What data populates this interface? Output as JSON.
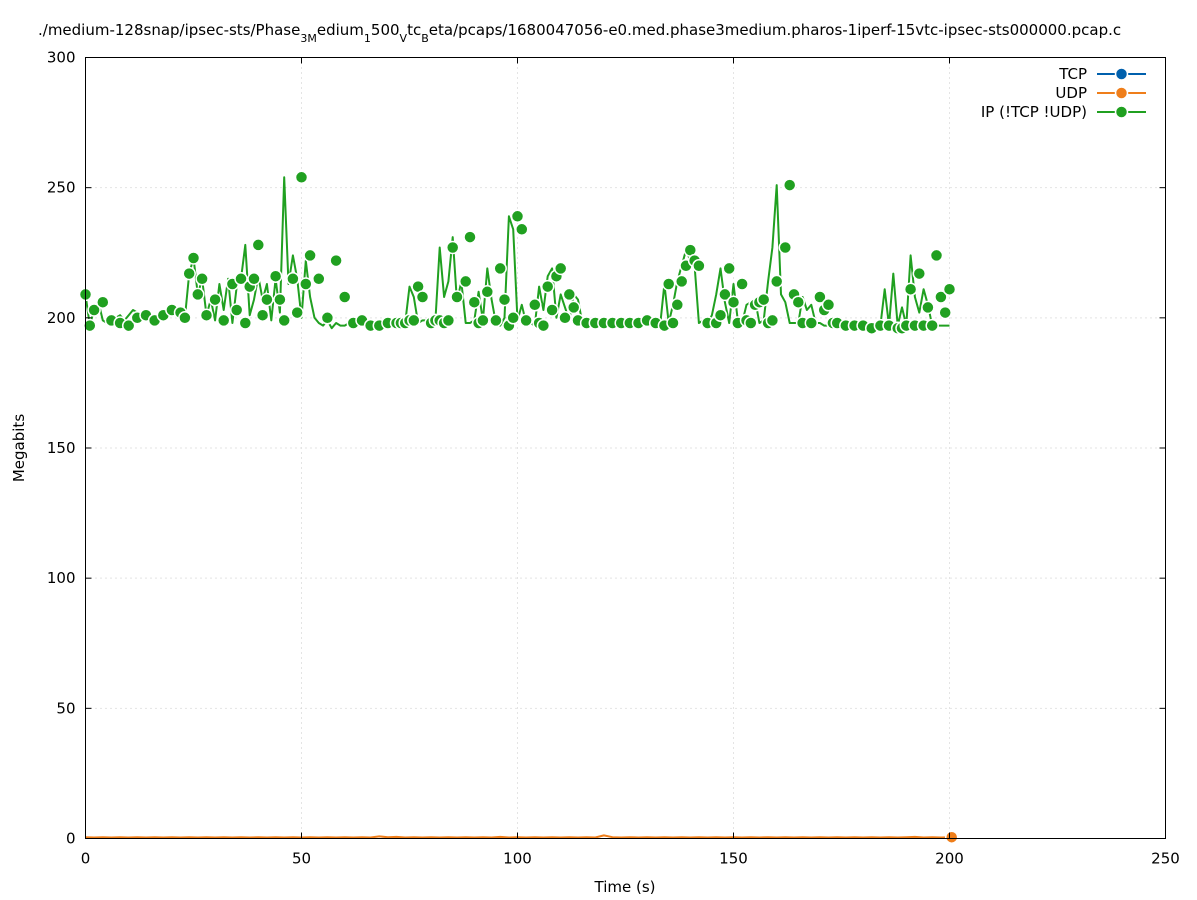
{
  "chart_data": {
    "type": "line",
    "title": "./medium-128snap/ipsec-sts/Phase3Medium1500VtcBeta/pcaps/1680047056-e0.med.phase3medium.pharos-1iperf-15vtc-ipsec-sts000000.pcap.c",
    "title_parts": {
      "p1": "./medium-128snap/ipsec-sts/Phase",
      "s1": "3M",
      "p2": "edium",
      "s2": "1",
      "p3": "500",
      "s3": "V",
      "p4": "tc",
      "s4": "B",
      "p5": "eta/pcaps/1680047056-e0.med.phase3medium.pharos-1iperf-15vtc-ipsec-sts000000.pcap.c"
    },
    "xlabel": "Time (s)",
    "ylabel": "Megabits",
    "xlim": [
      0,
      250
    ],
    "ylim": [
      0,
      300
    ],
    "xticks": [
      "0",
      "50",
      "100",
      "150",
      "200",
      "250"
    ],
    "yticks": [
      "0",
      "50",
      "100",
      "150",
      "200",
      "250",
      "300"
    ],
    "grid": true,
    "legend_position": "top-right",
    "series": [
      {
        "name": "TCP",
        "color": "#0060ad",
        "x": [],
        "y": []
      },
      {
        "name": "UDP",
        "color": "#ef7e1a",
        "x": [
          0,
          2,
          4,
          6,
          8,
          10,
          12,
          14,
          16,
          18,
          20,
          22,
          24,
          26,
          28,
          30,
          32,
          34,
          36,
          38,
          40,
          42,
          44,
          46,
          48,
          50,
          52,
          54,
          56,
          58,
          60,
          62,
          64,
          66,
          68,
          70,
          72,
          74,
          76,
          78,
          80,
          82,
          84,
          86,
          88,
          90,
          92,
          94,
          96,
          98,
          100,
          102,
          104,
          106,
          108,
          110,
          112,
          114,
          116,
          118,
          120,
          122,
          124,
          126,
          128,
          130,
          132,
          134,
          136,
          138,
          140,
          142,
          144,
          146,
          148,
          150,
          152,
          154,
          156,
          158,
          160,
          162,
          164,
          166,
          168,
          170,
          172,
          174,
          176,
          178,
          180,
          182,
          184,
          186,
          188,
          190,
          192,
          194,
          196,
          198,
          200.5
        ],
        "y": [
          0.5,
          0.4,
          0.5,
          0.4,
          0.5,
          0.4,
          0.5,
          0.4,
          0.5,
          0.4,
          0.5,
          0.4,
          0.5,
          0.4,
          0.5,
          0.4,
          0.5,
          0.4,
          0.5,
          0.4,
          0.5,
          0.4,
          0.5,
          0.4,
          0.5,
          0.4,
          0.5,
          0.4,
          0.5,
          0.4,
          0.5,
          0.4,
          0.5,
          0.4,
          0.8,
          0.5,
          0.6,
          0.4,
          0.5,
          0.4,
          0.5,
          0.4,
          0.5,
          0.4,
          0.5,
          0.4,
          0.5,
          0.4,
          0.6,
          0.4,
          0.5,
          0.4,
          0.5,
          0.4,
          0.5,
          0.4,
          0.5,
          0.4,
          0.5,
          0.4,
          1.2,
          0.5,
          0.4,
          0.5,
          0.4,
          0.5,
          0.4,
          0.5,
          0.4,
          0.5,
          0.4,
          0.5,
          0.4,
          0.5,
          0.4,
          0.5,
          0.4,
          0.5,
          0.4,
          0.5,
          0.4,
          0.5,
          0.4,
          0.5,
          0.4,
          0.5,
          0.4,
          0.5,
          0.4,
          0.5,
          0.4,
          0.5,
          0.4,
          0.5,
          0.4,
          0.5,
          0.6,
          0.4,
          0.5,
          0.4,
          0.5
        ],
        "marker_x": [
          200.5
        ],
        "marker_y": [
          0.5
        ]
      },
      {
        "name": "IP (!TCP  !UDP)",
        "color": "#20a020",
        "x": [
          0,
          1,
          2,
          3,
          4,
          5,
          6,
          7,
          8,
          9,
          10,
          11,
          12,
          13,
          14,
          15,
          16,
          17,
          18,
          19,
          20,
          21,
          22,
          23,
          24,
          25,
          26,
          27,
          28,
          29,
          30,
          31,
          32,
          33,
          34,
          35,
          36,
          37,
          38,
          39,
          40,
          41,
          42,
          43,
          44,
          45,
          46,
          47,
          48,
          49,
          50,
          51,
          52,
          53,
          54,
          55,
          56,
          57,
          58,
          59,
          60,
          61,
          62,
          63,
          64,
          65,
          66,
          67,
          68,
          69,
          70,
          71,
          72,
          73,
          74,
          75,
          76,
          77,
          78,
          79,
          80,
          81,
          82,
          83,
          84,
          85,
          86,
          87,
          88,
          89,
          90,
          91,
          92,
          93,
          94,
          95,
          96,
          97,
          98,
          99,
          100,
          101,
          102,
          103,
          104,
          105,
          106,
          107,
          108,
          109,
          110,
          111,
          112,
          113,
          114,
          115,
          116,
          117,
          118,
          119,
          120,
          121,
          122,
          123,
          124,
          125,
          126,
          127,
          128,
          129,
          130,
          131,
          132,
          133,
          134,
          135,
          136,
          137,
          138,
          139,
          140,
          141,
          142,
          143,
          144,
          145,
          146,
          147,
          148,
          149,
          150,
          151,
          152,
          153,
          154,
          155,
          156,
          157,
          158,
          159,
          160,
          161,
          162,
          163,
          164,
          165,
          166,
          167,
          168,
          169,
          170,
          171,
          172,
          173,
          174,
          175,
          176,
          177,
          178,
          179,
          180,
          181,
          182,
          183,
          184,
          185,
          186,
          187,
          188,
          189,
          190,
          191,
          192,
          193,
          194,
          195,
          196,
          197,
          198,
          199,
          200
        ],
        "y": [
          209,
          197,
          203,
          206,
          199,
          198,
          197,
          200,
          201,
          199,
          201,
          203,
          202,
          201,
          201,
          201,
          200,
          200,
          201,
          201,
          202,
          201,
          202,
          200,
          217,
          223,
          209,
          215,
          201,
          207,
          199,
          213,
          203,
          215,
          198,
          212,
          215,
          228,
          201,
          207,
          216,
          207,
          213,
          199,
          215,
          202,
          254,
          213,
          224,
          215,
          200,
          222,
          208,
          200,
          198,
          197,
          199,
          196,
          198,
          197,
          197,
          198,
          198,
          198,
          198,
          198,
          198,
          198,
          198,
          199,
          199,
          198,
          198,
          199,
          198,
          212,
          208,
          198,
          199,
          199,
          198,
          199,
          227,
          208,
          214,
          231,
          206,
          214,
          198,
          198,
          199,
          210,
          199,
          219,
          207,
          198,
          197,
          200,
          239,
          234,
          199,
          205,
          198,
          198,
          197,
          212,
          203,
          216,
          219,
          200,
          209,
          204,
          199,
          209,
          207,
          198,
          198,
          198,
          198,
          198,
          198,
          198,
          198,
          198,
          198,
          198,
          198,
          198,
          198,
          198,
          199,
          198,
          198,
          197,
          213,
          198,
          205,
          214,
          220,
          226,
          222,
          220,
          198,
          199,
          198,
          201,
          209,
          219,
          206,
          198,
          213,
          199,
          198,
          205,
          206,
          207,
          198,
          199,
          214,
          227,
          251,
          209,
          206,
          198,
          198,
          198,
          208,
          203,
          205,
          198,
          198,
          197,
          197,
          197,
          197,
          196,
          196,
          197,
          197,
          197,
          196,
          196,
          196,
          196,
          197,
          211,
          197,
          217,
          197,
          204,
          197,
          224,
          208,
          202,
          211,
          205,
          197,
          197,
          197,
          197,
          197
        ],
        "marker_x": [
          0,
          1,
          2,
          4,
          6,
          8,
          10,
          12,
          14,
          16,
          18,
          20,
          22,
          23,
          24,
          25,
          26,
          27,
          28,
          30,
          32,
          34,
          35,
          36,
          37,
          38,
          39,
          40,
          41,
          42,
          44,
          45,
          46,
          48,
          49,
          50,
          51,
          52,
          54,
          56,
          58,
          60,
          62,
          64,
          66,
          68,
          70,
          72,
          73,
          74,
          75,
          76,
          77,
          78,
          80,
          81,
          82,
          83,
          84,
          85,
          86,
          88,
          89,
          90,
          91,
          92,
          93,
          95,
          96,
          97,
          98,
          99,
          100,
          101,
          102,
          104,
          105,
          106,
          107,
          108,
          109,
          110,
          111,
          112,
          113,
          114,
          116,
          118,
          120,
          122,
          124,
          126,
          128,
          130,
          132,
          134,
          135,
          136,
          137,
          138,
          139,
          140,
          141,
          142,
          144,
          146,
          147,
          148,
          149,
          150,
          151,
          152,
          153,
          154,
          155,
          156,
          157,
          158,
          159,
          160,
          162,
          163,
          164,
          165,
          166,
          168,
          170,
          171,
          172,
          173,
          174,
          176,
          178,
          180,
          182,
          184,
          186,
          188,
          189,
          190,
          191,
          192,
          193,
          194,
          195,
          196,
          197,
          198,
          199,
          200
        ],
        "marker_y": [
          209,
          197,
          203,
          206,
          199,
          198,
          197,
          200,
          201,
          199,
          201,
          203,
          202,
          200,
          217,
          223,
          209,
          215,
          201,
          207,
          199,
          213,
          203,
          215,
          198,
          212,
          215,
          228,
          201,
          207,
          216,
          207,
          199,
          215,
          202,
          254,
          213,
          224,
          215,
          200,
          222,
          208,
          198,
          199,
          197,
          197,
          198,
          198,
          198,
          198,
          199,
          199,
          212,
          208,
          198,
          199,
          199,
          198,
          199,
          227,
          208,
          214,
          231,
          206,
          198,
          199,
          210,
          199,
          219,
          207,
          197,
          200,
          239,
          234,
          199,
          205,
          198,
          197,
          212,
          203,
          216,
          219,
          200,
          209,
          204,
          199,
          198,
          198,
          198,
          198,
          198,
          198,
          198,
          199,
          198,
          197,
          213,
          198,
          205,
          214,
          220,
          226,
          222,
          220,
          198,
          198,
          201,
          209,
          219,
          206,
          198,
          213,
          199,
          198,
          205,
          206,
          207,
          198,
          199,
          214,
          227,
          251,
          209,
          206,
          198,
          198,
          208,
          203,
          205,
          198,
          198,
          197,
          197,
          197,
          196,
          197,
          197,
          196,
          196,
          197,
          211,
          197,
          217,
          197,
          204,
          197,
          224,
          208,
          202,
          211,
          205
        ]
      }
    ]
  }
}
